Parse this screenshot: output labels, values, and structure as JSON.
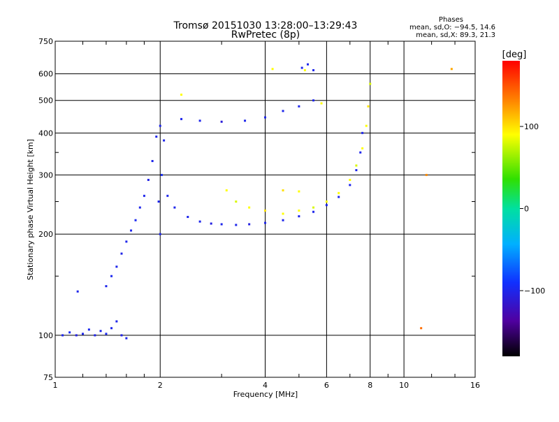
{
  "chart_data": {
    "type": "scatter",
    "title": "Tromsø 20151030 13:28:00–13:29:43",
    "subtitle": "RwPretec (8p)",
    "xlabel": "Frequency [MHz]",
    "ylabel": "Stationary phase Virtual Height [km]",
    "x_scale": "log",
    "y_scale": "log",
    "xlim": [
      1,
      16
    ],
    "ylim": [
      75,
      750
    ],
    "x_ticks": [
      1,
      2,
      4,
      6,
      8,
      10,
      16
    ],
    "x_tick_labels": [
      "1",
      "2",
      "4",
      "6",
      "8",
      "10",
      "16"
    ],
    "y_ticks": [
      75,
      100,
      200,
      300,
      400,
      500,
      600,
      750
    ],
    "y_tick_labels": [
      "75",
      "100",
      "200",
      "300",
      "400",
      "500",
      "600",
      "750"
    ],
    "grid": true,
    "phase_stats": {
      "heading": "Phases",
      "line_o": "mean, sd,O: −94.5, 14.6",
      "line_x": "mean, sd,X:  89.3, 21.3"
    },
    "colorbar": {
      "label": "[deg]",
      "range": [
        -180,
        180
      ],
      "ticks": [
        100,
        0,
        -100
      ],
      "tick_labels": [
        "100",
        "0",
        "−100"
      ]
    },
    "series": [
      {
        "name": "O",
        "points": [
          [
            1.05,
            100,
            -100
          ],
          [
            1.1,
            102,
            -95
          ],
          [
            1.15,
            100,
            -105
          ],
          [
            1.2,
            101,
            -100
          ],
          [
            1.25,
            104,
            -98
          ],
          [
            1.3,
            100,
            -102
          ],
          [
            1.35,
            103,
            -100
          ],
          [
            1.4,
            101,
            -97
          ],
          [
            1.45,
            105,
            -100
          ],
          [
            1.5,
            110,
            -100
          ],
          [
            1.55,
            100,
            -103
          ],
          [
            1.6,
            98,
            -100
          ],
          [
            1.16,
            135,
            -100
          ],
          [
            1.4,
            140,
            -100
          ],
          [
            1.45,
            150,
            -98
          ],
          [
            1.5,
            160,
            -100
          ],
          [
            1.55,
            175,
            -102
          ],
          [
            1.6,
            190,
            -100
          ],
          [
            1.65,
            205,
            -100
          ],
          [
            1.7,
            220,
            -97
          ],
          [
            1.75,
            240,
            -100
          ],
          [
            1.8,
            260,
            -100
          ],
          [
            1.85,
            290,
            -103
          ],
          [
            1.9,
            330,
            -100
          ],
          [
            1.95,
            390,
            -100
          ],
          [
            2.0,
            420,
            -100
          ],
          [
            2.05,
            380,
            -100
          ],
          [
            2.02,
            300,
            -95
          ],
          [
            1.98,
            250,
            -100
          ],
          [
            2.0,
            200,
            -100
          ],
          [
            2.1,
            260,
            -100
          ],
          [
            2.2,
            240,
            -100
          ],
          [
            2.4,
            225,
            -100
          ],
          [
            2.6,
            218,
            -100
          ],
          [
            2.8,
            215,
            -105
          ],
          [
            3.0,
            214,
            -100
          ],
          [
            3.3,
            213,
            -100
          ],
          [
            3.6,
            214,
            -105
          ],
          [
            4.0,
            216,
            -100
          ],
          [
            4.5,
            220,
            -100
          ],
          [
            5.0,
            226,
            -100
          ],
          [
            5.5,
            233,
            -100
          ],
          [
            6.0,
            244,
            -100
          ],
          [
            6.5,
            258,
            -100
          ],
          [
            7.0,
            280,
            -100
          ],
          [
            7.3,
            310,
            -100
          ],
          [
            7.5,
            350,
            -100
          ],
          [
            7.6,
            400,
            -100
          ],
          [
            2.3,
            440,
            -100
          ],
          [
            2.6,
            435,
            -100
          ],
          [
            3.0,
            432,
            -110
          ],
          [
            3.5,
            435,
            -100
          ],
          [
            4.0,
            445,
            -100
          ],
          [
            4.5,
            465,
            -100
          ],
          [
            5.0,
            480,
            -100
          ],
          [
            5.5,
            500,
            -100
          ],
          [
            5.1,
            625,
            -100
          ],
          [
            5.3,
            640,
            -100
          ],
          [
            5.5,
            615,
            -100
          ]
        ]
      },
      {
        "name": "X",
        "points": [
          [
            3.1,
            270,
            90
          ],
          [
            3.3,
            250,
            80
          ],
          [
            3.6,
            240,
            90
          ],
          [
            4.0,
            235,
            100
          ],
          [
            4.5,
            230,
            90
          ],
          [
            5.0,
            235,
            90
          ],
          [
            5.5,
            240,
            80
          ],
          [
            6.0,
            250,
            90
          ],
          [
            6.5,
            265,
            90
          ],
          [
            7.0,
            290,
            90
          ],
          [
            7.3,
            320,
            80
          ],
          [
            7.6,
            360,
            90
          ],
          [
            7.8,
            420,
            90
          ],
          [
            7.9,
            480,
            100
          ],
          [
            8.0,
            560,
            80
          ],
          [
            4.5,
            270,
            100
          ],
          [
            5.0,
            268,
            90
          ],
          [
            5.2,
            615,
            90
          ],
          [
            4.2,
            620,
            90
          ],
          [
            5.8,
            490,
            90
          ],
          [
            2.3,
            520,
            90
          ],
          [
            13.7,
            620,
            120
          ],
          [
            11.6,
            300,
            130
          ],
          [
            11.2,
            105,
            140
          ]
        ]
      }
    ]
  }
}
